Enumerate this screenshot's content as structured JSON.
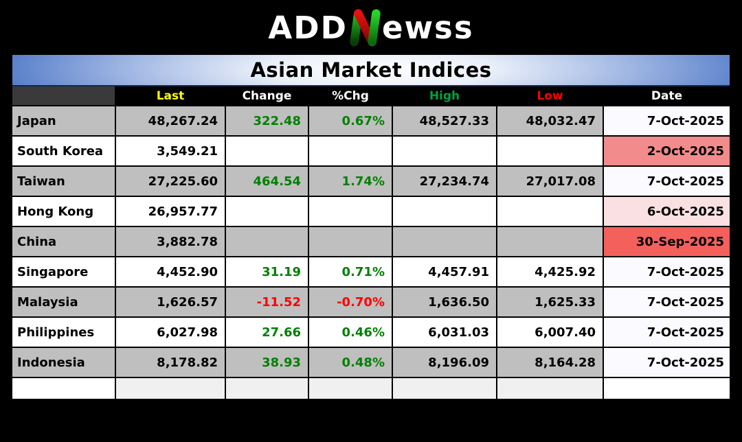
{
  "logo": {
    "prefix": "ADD",
    "n_letter": "N",
    "suffix": "ewss"
  },
  "title_bar": {
    "title": "Asian Market Indices"
  },
  "chart_data": {
    "type": "table",
    "title": "Asian Market Indices",
    "columns": [
      "",
      "Last",
      "Change",
      "%Chg",
      "High",
      "Low",
      "Date"
    ],
    "header_text_colors": [
      "#FFFFFF",
      "#FFFF00",
      "#FFFFFF",
      "#FFFFFF",
      "#00A143",
      "#FF0000",
      "#FFFFFF"
    ],
    "rows": [
      {
        "name": "Japan",
        "last": "48,267.24",
        "change": "322.48",
        "pct_chg": "0.67%",
        "high": "48,527.33",
        "low": "48,032.47",
        "date": "7-Oct-2025",
        "row_bg": "#BFBFBF",
        "date_bg": "#FBFAFE"
      },
      {
        "name": "South Korea",
        "last": "3,549.21",
        "change": "",
        "pct_chg": "",
        "high": "",
        "low": "",
        "date": "2-Oct-2025",
        "row_bg": "#FFFFFF",
        "date_bg": "#F28B8B"
      },
      {
        "name": "Taiwan",
        "last": "27,225.60",
        "change": "464.54",
        "pct_chg": "1.74%",
        "high": "27,234.74",
        "low": "27,017.08",
        "date": "7-Oct-2025",
        "row_bg": "#BFBFBF",
        "date_bg": "#FBFAFE"
      },
      {
        "name": "Hong Kong",
        "last": "26,957.77",
        "change": "",
        "pct_chg": "",
        "high": "",
        "low": "",
        "date": "6-Oct-2025",
        "row_bg": "#FFFFFF",
        "date_bg": "#FAE0E2"
      },
      {
        "name": "China",
        "last": "3,882.78",
        "change": "",
        "pct_chg": "",
        "high": "",
        "low": "",
        "date": "30-Sep-2025",
        "row_bg": "#BFBFBF",
        "date_bg": "#F4605C"
      },
      {
        "name": "Singapore",
        "last": "4,452.90",
        "change": "31.19",
        "pct_chg": "0.71%",
        "high": "4,457.91",
        "low": "4,425.92",
        "date": "7-Oct-2025",
        "row_bg": "#FFFFFF",
        "date_bg": "#FBFAFE"
      },
      {
        "name": "Malaysia",
        "last": "1,626.57",
        "change": "-11.52",
        "pct_chg": "-0.70%",
        "high": "1,636.50",
        "low": "1,625.33",
        "date": "7-Oct-2025",
        "row_bg": "#BFBFBF",
        "date_bg": "#FBFAFE"
      },
      {
        "name": "Philippines",
        "last": "6,027.98",
        "change": "27.66",
        "pct_chg": "0.46%",
        "high": "6,031.03",
        "low": "6,007.40",
        "date": "7-Oct-2025",
        "row_bg": "#FFFFFF",
        "date_bg": "#FBFAFE"
      },
      {
        "name": "Indonesia",
        "last": "8,178.82",
        "change": "38.93",
        "pct_chg": "0.48%",
        "high": "8,196.09",
        "low": "8,164.28",
        "date": "7-Oct-2025",
        "row_bg": "#BFBFBF",
        "date_bg": "#FBFAFE"
      }
    ],
    "empty_row": {
      "name_bg": "#FFFFFF",
      "cells_bg": "#F0F0F0",
      "date_bg": "#FFFFFF"
    }
  },
  "colors": {
    "positive_text": "#008000",
    "negative_text": "#FF0000",
    "header_bg": "#000000",
    "header_corner_bg": "#3A3A3A",
    "row_gray": "#BFBFBF",
    "title_gradient_blue": "#4A75C5",
    "logo_green_bright": "#23C523",
    "logo_green_dark": "#063F06",
    "logo_red": "#D40000"
  }
}
